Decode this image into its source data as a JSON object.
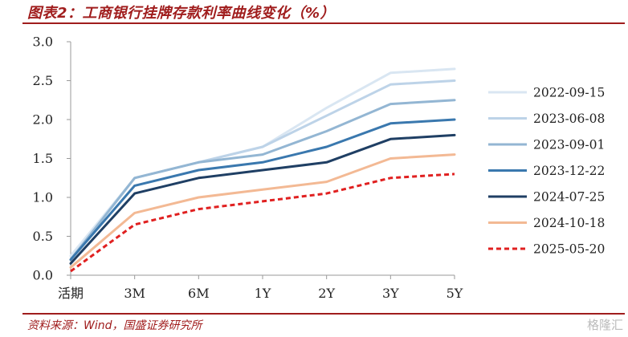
{
  "header": {
    "title": "图表2：工商银行挂牌存款利率曲线变化（%）",
    "source": "资料来源：Wind，国盛证券研究所",
    "watermark": "格隆汇"
  },
  "chart_data": {
    "type": "line",
    "title": "图表2：工商银行挂牌存款利率曲线变化（%）",
    "xlabel": "",
    "ylabel": "",
    "categories": [
      "活期",
      "3M",
      "6M",
      "1Y",
      "2Y",
      "3Y",
      "5Y"
    ],
    "y_ticks": [
      "0.0",
      "0.5",
      "1.0",
      "1.5",
      "2.0",
      "2.5",
      "3.0"
    ],
    "ylim": [
      0,
      3.0
    ],
    "grid": false,
    "legend_position": "right",
    "series": [
      {
        "name": "2022-09-15",
        "color": "#d9e6f2",
        "dashed": false,
        "values": [
          0.25,
          1.25,
          1.45,
          1.65,
          2.15,
          2.6,
          2.65
        ]
      },
      {
        "name": "2023-06-08",
        "color": "#bdd3e8",
        "dashed": false,
        "values": [
          0.2,
          1.25,
          1.45,
          1.65,
          2.05,
          2.45,
          2.5
        ]
      },
      {
        "name": "2023-09-01",
        "color": "#93b6d3",
        "dashed": false,
        "values": [
          0.2,
          1.25,
          1.45,
          1.55,
          1.85,
          2.2,
          2.25
        ]
      },
      {
        "name": "2023-12-22",
        "color": "#3a78ae",
        "dashed": false,
        "values": [
          0.2,
          1.15,
          1.35,
          1.45,
          1.65,
          1.95,
          2.0
        ]
      },
      {
        "name": "2024-07-25",
        "color": "#1f3f64",
        "dashed": false,
        "values": [
          0.15,
          1.05,
          1.25,
          1.35,
          1.45,
          1.75,
          1.8
        ]
      },
      {
        "name": "2024-10-18",
        "color": "#f3b994",
        "dashed": false,
        "values": [
          0.1,
          0.8,
          1.0,
          1.1,
          1.2,
          1.5,
          1.55
        ]
      },
      {
        "name": "2025-05-20",
        "color": "#e02020",
        "dashed": true,
        "values": [
          0.05,
          0.65,
          0.85,
          0.95,
          1.05,
          1.25,
          1.3
        ]
      }
    ]
  }
}
